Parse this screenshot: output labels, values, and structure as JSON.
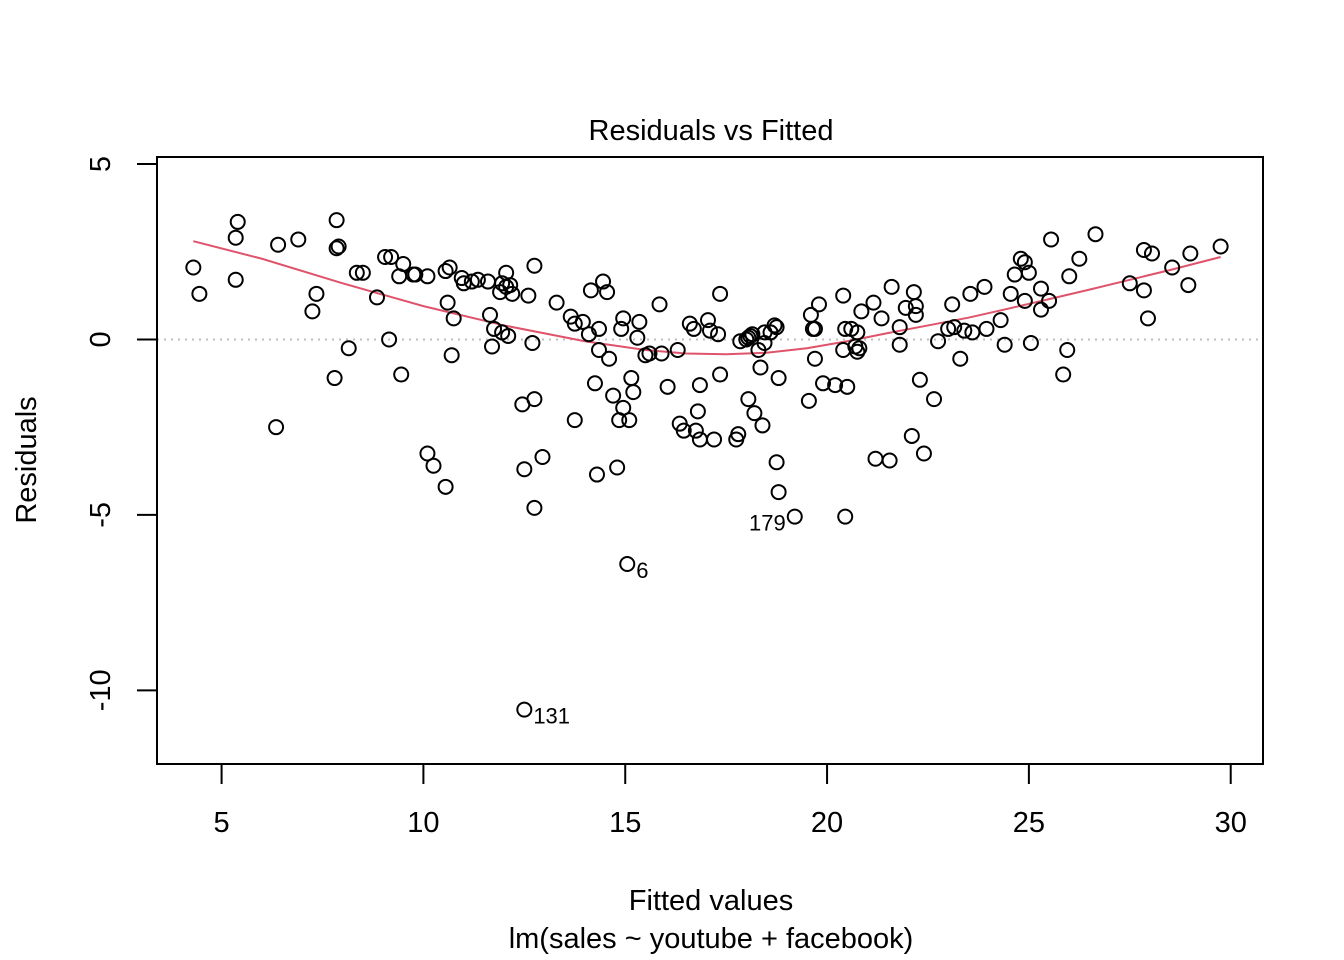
{
  "chart_data": {
    "type": "scatter",
    "title": "Residuals vs Fitted",
    "xlabel": "Fitted values",
    "sublabel": "lm(sales ~ youtube + facebook)",
    "ylabel": "Residuals",
    "xlim": [
      3.4,
      30.8
    ],
    "ylim": [
      -12.1,
      5.2
    ],
    "x_ticks": [
      5,
      10,
      15,
      20,
      25,
      30
    ],
    "y_ticks": [
      5,
      0,
      -5,
      -10
    ],
    "grid": false,
    "reference_line_y": 0,
    "colors": {
      "points": "#000000",
      "smooth": "#DF536B",
      "reference": "#BEBEBE",
      "axes": "#000000"
    },
    "points": [
      [
        4.3,
        2.05
      ],
      [
        4.45,
        1.3
      ],
      [
        5.35,
        1.7
      ],
      [
        5.35,
        2.9
      ],
      [
        5.4,
        3.35
      ],
      [
        6.35,
        -2.5
      ],
      [
        6.4,
        2.7
      ],
      [
        6.9,
        2.85
      ],
      [
        7.25,
        0.8
      ],
      [
        7.35,
        1.3
      ],
      [
        7.8,
        -1.1
      ],
      [
        7.85,
        2.6
      ],
      [
        7.85,
        3.4
      ],
      [
        7.9,
        2.65
      ],
      [
        8.15,
        -0.25
      ],
      [
        8.35,
        1.9
      ],
      [
        8.5,
        1.9
      ],
      [
        8.85,
        1.2
      ],
      [
        9.05,
        2.35
      ],
      [
        9.15,
        0.0
      ],
      [
        9.2,
        2.35
      ],
      [
        9.4,
        1.8
      ],
      [
        9.45,
        -1.0
      ],
      [
        9.5,
        2.15
      ],
      [
        9.75,
        1.85
      ],
      [
        9.8,
        1.85
      ],
      [
        10.1,
        1.8
      ],
      [
        10.1,
        -3.25
      ],
      [
        10.25,
        -3.6
      ],
      [
        10.55,
        1.95
      ],
      [
        10.55,
        -4.2
      ],
      [
        10.6,
        1.05
      ],
      [
        10.65,
        2.05
      ],
      [
        10.7,
        -0.45
      ],
      [
        10.75,
        0.6
      ],
      [
        10.95,
        1.75
      ],
      [
        11.0,
        1.6
      ],
      [
        11.2,
        1.65
      ],
      [
        11.35,
        1.7
      ],
      [
        11.6,
        1.65
      ],
      [
        11.65,
        0.7
      ],
      [
        11.7,
        -0.2
      ],
      [
        11.75,
        0.3
      ],
      [
        11.9,
        1.35
      ],
      [
        11.95,
        0.2
      ],
      [
        11.95,
        1.6
      ],
      [
        12.05,
        1.9
      ],
      [
        12.05,
        1.5
      ],
      [
        12.1,
        0.1
      ],
      [
        12.15,
        1.55
      ],
      [
        12.2,
        1.3
      ],
      [
        12.45,
        -1.85
      ],
      [
        12.5,
        -3.7
      ],
      [
        12.5,
        -10.55
      ],
      [
        12.6,
        1.25
      ],
      [
        12.7,
        -0.1
      ],
      [
        12.75,
        -1.7
      ],
      [
        12.75,
        2.1
      ],
      [
        12.75,
        -4.8
      ],
      [
        12.95,
        -3.35
      ],
      [
        13.3,
        1.05
      ],
      [
        13.65,
        0.65
      ],
      [
        13.75,
        0.45
      ],
      [
        13.75,
        -2.3
      ],
      [
        13.95,
        0.5
      ],
      [
        14.1,
        0.15
      ],
      [
        14.15,
        1.4
      ],
      [
        14.25,
        -1.25
      ],
      [
        14.3,
        -3.85
      ],
      [
        14.35,
        0.3
      ],
      [
        14.35,
        -0.3
      ],
      [
        14.45,
        1.65
      ],
      [
        14.55,
        1.35
      ],
      [
        14.6,
        -0.55
      ],
      [
        14.7,
        -1.6
      ],
      [
        14.8,
        -3.65
      ],
      [
        14.85,
        -2.3
      ],
      [
        14.9,
        0.3
      ],
      [
        14.95,
        0.6
      ],
      [
        14.95,
        -1.95
      ],
      [
        15.05,
        -6.4
      ],
      [
        15.1,
        -2.3
      ],
      [
        15.15,
        -1.1
      ],
      [
        15.2,
        -1.5
      ],
      [
        15.3,
        0.05
      ],
      [
        15.35,
        0.5
      ],
      [
        15.5,
        -0.45
      ],
      [
        15.6,
        -0.4
      ],
      [
        15.85,
        1.0
      ],
      [
        15.9,
        -0.4
      ],
      [
        16.05,
        -1.35
      ],
      [
        16.3,
        -0.3
      ],
      [
        16.35,
        -2.4
      ],
      [
        16.45,
        -2.6
      ],
      [
        16.6,
        0.45
      ],
      [
        16.7,
        0.3
      ],
      [
        16.75,
        -2.6
      ],
      [
        16.8,
        -2.05
      ],
      [
        16.85,
        -2.85
      ],
      [
        16.85,
        -1.3
      ],
      [
        17.05,
        0.55
      ],
      [
        17.1,
        0.25
      ],
      [
        17.2,
        -2.85
      ],
      [
        17.3,
        0.15
      ],
      [
        17.35,
        1.3
      ],
      [
        17.35,
        -1.0
      ],
      [
        17.75,
        -2.85
      ],
      [
        17.8,
        -2.7
      ],
      [
        17.85,
        -0.05
      ],
      [
        18.0,
        0.0
      ],
      [
        18.05,
        -1.7
      ],
      [
        18.05,
        0.05
      ],
      [
        18.1,
        0.1
      ],
      [
        18.15,
        0.15
      ],
      [
        18.2,
        -2.1
      ],
      [
        18.3,
        -0.3
      ],
      [
        18.35,
        -0.8
      ],
      [
        18.4,
        -2.45
      ],
      [
        18.45,
        0.2
      ],
      [
        18.45,
        -0.1
      ],
      [
        18.6,
        0.2
      ],
      [
        18.7,
        0.4
      ],
      [
        18.75,
        0.35
      ],
      [
        18.75,
        -3.5
      ],
      [
        18.8,
        -4.35
      ],
      [
        18.8,
        -1.1
      ],
      [
        19.2,
        -5.05
      ],
      [
        19.55,
        -1.75
      ],
      [
        19.6,
        0.7
      ],
      [
        19.65,
        0.3
      ],
      [
        19.7,
        0.3
      ],
      [
        19.7,
        -0.55
      ],
      [
        19.8,
        1.0
      ],
      [
        19.9,
        -1.25
      ],
      [
        20.2,
        -1.3
      ],
      [
        20.4,
        1.25
      ],
      [
        20.4,
        -0.3
      ],
      [
        20.45,
        0.3
      ],
      [
        20.45,
        -5.05
      ],
      [
        20.5,
        -1.35
      ],
      [
        20.6,
        0.3
      ],
      [
        20.7,
        -0.2
      ],
      [
        20.75,
        0.2
      ],
      [
        20.75,
        -0.35
      ],
      [
        20.8,
        -0.25
      ],
      [
        20.85,
        0.8
      ],
      [
        21.15,
        1.05
      ],
      [
        21.2,
        -3.4
      ],
      [
        21.35,
        0.6
      ],
      [
        21.55,
        -3.45
      ],
      [
        21.6,
        1.5
      ],
      [
        21.8,
        0.35
      ],
      [
        21.8,
        -0.15
      ],
      [
        21.95,
        0.9
      ],
      [
        22.1,
        -2.75
      ],
      [
        22.15,
        1.35
      ],
      [
        22.2,
        0.95
      ],
      [
        22.2,
        0.7
      ],
      [
        22.3,
        -1.15
      ],
      [
        22.4,
        -3.25
      ],
      [
        22.65,
        -1.7
      ],
      [
        22.75,
        -0.05
      ],
      [
        23.0,
        0.3
      ],
      [
        23.1,
        1.0
      ],
      [
        23.15,
        0.35
      ],
      [
        23.3,
        -0.55
      ],
      [
        23.4,
        0.25
      ],
      [
        23.55,
        1.3
      ],
      [
        23.6,
        0.2
      ],
      [
        23.9,
        1.5
      ],
      [
        23.95,
        0.3
      ],
      [
        24.3,
        0.55
      ],
      [
        24.4,
        -0.15
      ],
      [
        24.55,
        1.3
      ],
      [
        24.65,
        1.85
      ],
      [
        24.8,
        2.3
      ],
      [
        24.9,
        1.1
      ],
      [
        24.9,
        2.2
      ],
      [
        25.0,
        1.9
      ],
      [
        25.05,
        -0.1
      ],
      [
        25.3,
        1.45
      ],
      [
        25.3,
        0.85
      ],
      [
        25.5,
        1.1
      ],
      [
        25.55,
        2.85
      ],
      [
        25.85,
        -1.0
      ],
      [
        25.95,
        -0.3
      ],
      [
        26.0,
        1.8
      ],
      [
        26.25,
        2.3
      ],
      [
        26.65,
        3.0
      ],
      [
        27.5,
        1.6
      ],
      [
        27.85,
        2.55
      ],
      [
        27.85,
        1.4
      ],
      [
        27.95,
        0.6
      ],
      [
        28.05,
        2.45
      ],
      [
        28.55,
        2.05
      ],
      [
        28.95,
        1.55
      ],
      [
        29.0,
        2.45
      ],
      [
        29.75,
        2.65
      ]
    ],
    "smooth_line": [
      [
        4.3,
        2.8
      ],
      [
        6.0,
        2.3
      ],
      [
        8.0,
        1.6
      ],
      [
        10.0,
        0.95
      ],
      [
        12.0,
        0.4
      ],
      [
        14.0,
        -0.05
      ],
      [
        15.5,
        -0.3
      ],
      [
        16.5,
        -0.4
      ],
      [
        17.5,
        -0.42
      ],
      [
        18.5,
        -0.38
      ],
      [
        19.5,
        -0.25
      ],
      [
        20.5,
        -0.05
      ],
      [
        21.5,
        0.18
      ],
      [
        22.5,
        0.4
      ],
      [
        23.5,
        0.62
      ],
      [
        24.5,
        0.88
      ],
      [
        25.5,
        1.15
      ],
      [
        26.5,
        1.42
      ],
      [
        27.5,
        1.7
      ],
      [
        28.5,
        1.98
      ],
      [
        29.75,
        2.35
      ]
    ],
    "labeled_points": [
      {
        "label": "131",
        "x": 12.5,
        "y": -10.55
      },
      {
        "label": "6",
        "x": 15.05,
        "y": -6.4
      },
      {
        "label": "179",
        "x": 19.2,
        "y": -5.05
      }
    ]
  }
}
